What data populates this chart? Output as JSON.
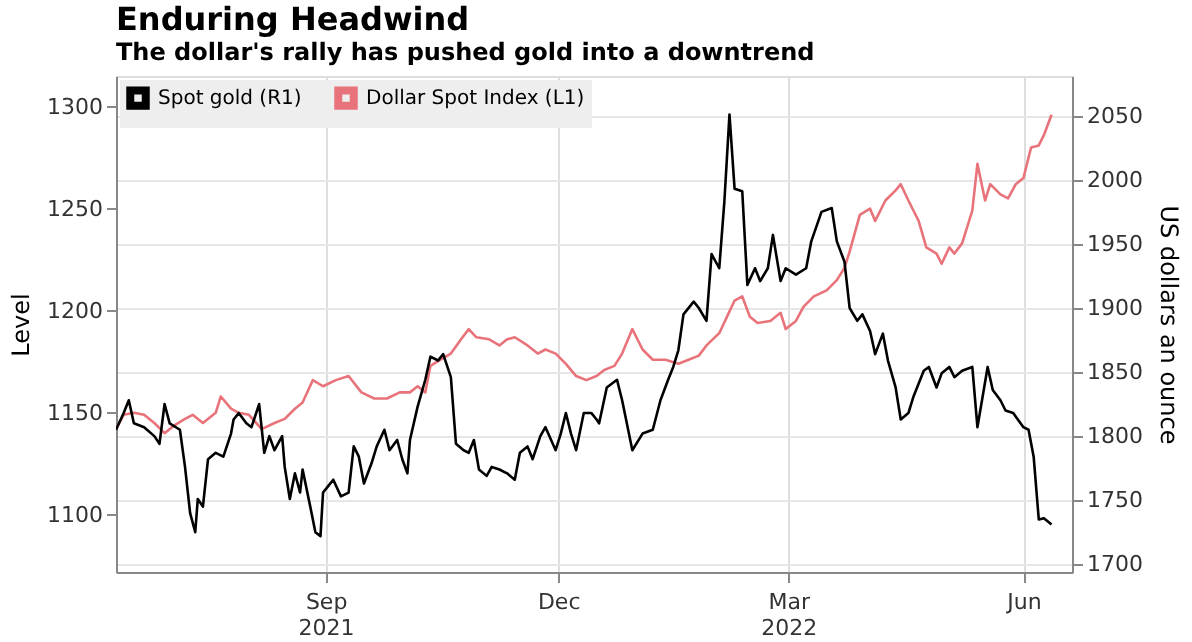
{
  "chart_data": {
    "type": "line",
    "title": "Enduring Headwind",
    "subtitle": "The dollar's rally has pushed gold into a downtrend",
    "ylabel": "Level",
    "y2label": "US dollars an ounce",
    "legend": "top left",
    "grid": true,
    "line_style": "solid",
    "marker": "none",
    "xlim": [
      "2021-06-11",
      "2022-06-20"
    ],
    "xticks": [
      {
        "value": "2021-09-01",
        "label": "Sep\n2021"
      },
      {
        "value": "2021-12-01",
        "label": "Dec"
      },
      {
        "value": "2022-03-01",
        "label": "Mar\n2022"
      },
      {
        "value": "2022-06-01",
        "label": "Jun"
      }
    ],
    "ylim": [
      1072,
      1315
    ],
    "yticks": [
      1100,
      1150,
      1200,
      1250,
      1300
    ],
    "y2lim": [
      1694,
      2081
    ],
    "y2ticks": [
      1700,
      1750,
      1800,
      1850,
      1900,
      1950,
      2000,
      2050
    ],
    "series": [
      {
        "name": "Spot gold (R1)",
        "color": "#000000",
        "axis": "y2",
        "x": [
          "2021-06-11",
          "2021-06-14",
          "2021-06-16",
          "2021-06-18",
          "2021-06-22",
          "2021-06-26",
          "2021-06-28",
          "2021-06-30",
          "2021-07-02",
          "2021-07-06",
          "2021-07-08",
          "2021-07-10",
          "2021-07-12",
          "2021-07-13",
          "2021-07-15",
          "2021-07-17",
          "2021-07-20",
          "2021-07-23",
          "2021-07-26",
          "2021-07-27",
          "2021-07-29",
          "2021-08-01",
          "2021-08-03",
          "2021-08-06",
          "2021-08-08",
          "2021-08-10",
          "2021-08-12",
          "2021-08-15",
          "2021-08-16",
          "2021-08-18",
          "2021-08-20",
          "2021-08-22",
          "2021-08-23",
          "2021-08-26",
          "2021-08-28",
          "2021-08-30",
          "2021-08-31",
          "2021-09-02",
          "2021-09-04",
          "2021-09-07",
          "2021-09-10",
          "2021-09-12",
          "2021-09-14",
          "2021-09-16",
          "2021-09-19",
          "2021-09-21",
          "2021-09-24",
          "2021-09-26",
          "2021-09-29",
          "2021-10-01",
          "2021-10-03",
          "2021-10-04",
          "2021-10-07",
          "2021-10-10",
          "2021-10-12",
          "2021-10-15",
          "2021-10-17",
          "2021-10-20",
          "2021-10-22",
          "2021-10-25",
          "2021-10-27",
          "2021-10-29",
          "2021-10-31",
          "2021-11-03",
          "2021-11-05",
          "2021-11-08",
          "2021-11-11",
          "2021-11-14",
          "2021-11-16",
          "2021-11-19",
          "2021-11-21",
          "2021-11-24",
          "2021-11-26",
          "2021-11-30",
          "2021-12-02",
          "2021-12-04",
          "2021-12-06",
          "2021-12-08",
          "2021-12-11",
          "2021-12-14",
          "2021-12-16",
          "2021-12-17",
          "2021-12-20",
          "2021-12-24",
          "2021-12-26",
          "2021-12-30",
          "2022-01-03",
          "2022-01-07",
          "2022-01-10",
          "2022-01-13",
          "2022-01-15",
          "2022-01-17",
          "2022-01-19",
          "2022-01-23",
          "2022-01-25",
          "2022-01-28",
          "2022-01-30",
          "2022-02-02",
          "2022-02-04",
          "2022-02-06",
          "2022-02-08",
          "2022-02-11",
          "2022-02-13",
          "2022-02-16",
          "2022-02-18",
          "2022-02-21",
          "2022-02-23",
          "2022-02-26",
          "2022-02-28",
          "2022-03-04",
          "2022-03-08",
          "2022-03-10",
          "2022-03-14",
          "2022-03-18",
          "2022-03-20",
          "2022-03-23",
          "2022-03-25",
          "2022-03-28",
          "2022-03-30",
          "2022-04-02",
          "2022-04-04",
          "2022-04-07",
          "2022-04-09",
          "2022-04-12",
          "2022-04-14",
          "2022-04-17",
          "2022-04-19",
          "2022-04-23",
          "2022-04-25",
          "2022-04-28",
          "2022-04-30",
          "2022-05-03",
          "2022-05-05",
          "2022-05-08",
          "2022-05-12",
          "2022-05-14",
          "2022-05-18",
          "2022-05-20",
          "2022-05-23",
          "2022-05-25",
          "2022-05-28",
          "2022-06-01",
          "2022-06-03",
          "2022-06-05",
          "2022-06-07",
          "2022-06-09",
          "2022-06-12"
        ],
        "values": [
          1805,
          1818,
          1828,
          1810,
          1807,
          1800,
          1794,
          1825,
          1810,
          1805,
          1776,
          1740,
          1725,
          1751,
          1745,
          1782,
          1787,
          1784,
          1802,
          1813,
          1818,
          1810,
          1807,
          1825,
          1787,
          1800,
          1789,
          1800,
          1776,
          1751,
          1771,
          1756,
          1774,
          1745,
          1725,
          1722,
          1756,
          1761,
          1766,
          1753,
          1756,
          1792,
          1784,
          1763,
          1779,
          1792,
          1805,
          1789,
          1797,
          1782,
          1771,
          1797,
          1823,
          1844,
          1862,
          1859,
          1864,
          1846,
          1794,
          1789,
          1787,
          1797,
          1774,
          1769,
          1776,
          1774,
          1771,
          1766,
          1787,
          1792,
          1782,
          1800,
          1807,
          1789,
          1802,
          1818,
          1802,
          1789,
          1818,
          1818,
          1813,
          1810,
          1838,
          1844,
          1828,
          1789,
          1802,
          1805,
          1828,
          1844,
          1854,
          1867,
          1895,
          1905,
          1900,
          1890,
          1942,
          1931,
          1983,
          2051,
          1993,
          1991,
          1918,
          1931,
          1921,
          1931,
          1957,
          1921,
          1931,
          1926,
          1931,
          1952,
          1975,
          1978,
          1952,
          1936,
          1900,
          1890,
          1895,
          1882,
          1864,
          1880,
          1859,
          1838,
          1813,
          1818,
          1831,
          1851,
          1854,
          1838,
          1849,
          1854,
          1846,
          1851,
          1854,
          1807,
          1854,
          1836,
          1828,
          1820,
          1818,
          1807,
          1805,
          1784,
          1735,
          1736,
          1731
        ]
      },
      {
        "name": "Dollar Spot Index (L1)",
        "color": "#e8737a",
        "axis": "y",
        "x": [
          "2021-06-11",
          "2021-06-14",
          "2021-06-18",
          "2021-06-22",
          "2021-06-26",
          "2021-06-30",
          "2021-07-04",
          "2021-07-08",
          "2021-07-11",
          "2021-07-15",
          "2021-07-20",
          "2021-07-22",
          "2021-07-26",
          "2021-07-29",
          "2021-08-02",
          "2021-08-07",
          "2021-08-12",
          "2021-08-16",
          "2021-08-20",
          "2021-08-23",
          "2021-08-27",
          "2021-08-31",
          "2021-09-05",
          "2021-09-10",
          "2021-09-15",
          "2021-09-20",
          "2021-09-25",
          "2021-09-30",
          "2021-10-04",
          "2021-10-07",
          "2021-10-10",
          "2021-10-12",
          "2021-10-16",
          "2021-10-20",
          "2021-10-24",
          "2021-10-27",
          "2021-10-30",
          "2021-11-04",
          "2021-11-08",
          "2021-11-11",
          "2021-11-14",
          "2021-11-19",
          "2021-11-23",
          "2021-11-26",
          "2021-11-30",
          "2021-12-04",
          "2021-12-08",
          "2021-12-12",
          "2021-12-16",
          "2021-12-19",
          "2021-12-23",
          "2021-12-26",
          "2021-12-30",
          "2022-01-03",
          "2022-01-07",
          "2022-01-12",
          "2022-01-17",
          "2022-01-21",
          "2022-01-25",
          "2022-01-28",
          "2022-02-02",
          "2022-02-05",
          "2022-02-08",
          "2022-02-11",
          "2022-02-14",
          "2022-02-17",
          "2022-02-22",
          "2022-02-26",
          "2022-02-28",
          "2022-03-04",
          "2022-03-07",
          "2022-03-11",
          "2022-03-16",
          "2022-03-20",
          "2022-03-23",
          "2022-03-25",
          "2022-03-29",
          "2022-04-02",
          "2022-04-04",
          "2022-04-08",
          "2022-04-12",
          "2022-04-14",
          "2022-04-17",
          "2022-04-19",
          "2022-04-21",
          "2022-04-24",
          "2022-04-28",
          "2022-04-30",
          "2022-05-03",
          "2022-05-05",
          "2022-05-08",
          "2022-05-12",
          "2022-05-14",
          "2022-05-17",
          "2022-05-19",
          "2022-05-23",
          "2022-05-26",
          "2022-05-29",
          "2022-06-01",
          "2022-06-04",
          "2022-06-07",
          "2022-06-09",
          "2022-06-12"
        ],
        "values": [
          1142,
          1149,
          1150,
          1149,
          1145,
          1140,
          1144,
          1147,
          1149,
          1145,
          1150,
          1158,
          1152,
          1150,
          1149,
          1142,
          1145,
          1147,
          1152,
          1155,
          1166,
          1163,
          1166,
          1168,
          1160,
          1157,
          1157,
          1160,
          1160,
          1163,
          1160,
          1173,
          1176,
          1179,
          1186,
          1191,
          1187,
          1186,
          1183,
          1186,
          1187,
          1183,
          1179,
          1181,
          1179,
          1174,
          1168,
          1166,
          1168,
          1171,
          1173,
          1179,
          1191,
          1181,
          1176,
          1176,
          1174,
          1176,
          1178,
          1183,
          1189,
          1197,
          1205,
          1207,
          1197,
          1194,
          1195,
          1199,
          1191,
          1195,
          1202,
          1207,
          1210,
          1215,
          1221,
          1229,
          1247,
          1250,
          1244,
          1254,
          1259,
          1262,
          1254,
          1249,
          1244,
          1231,
          1228,
          1223,
          1231,
          1228,
          1233,
          1249,
          1272,
          1254,
          1262,
          1257,
          1255,
          1262,
          1265,
          1280,
          1281,
          1286,
          1296
        ]
      }
    ]
  }
}
